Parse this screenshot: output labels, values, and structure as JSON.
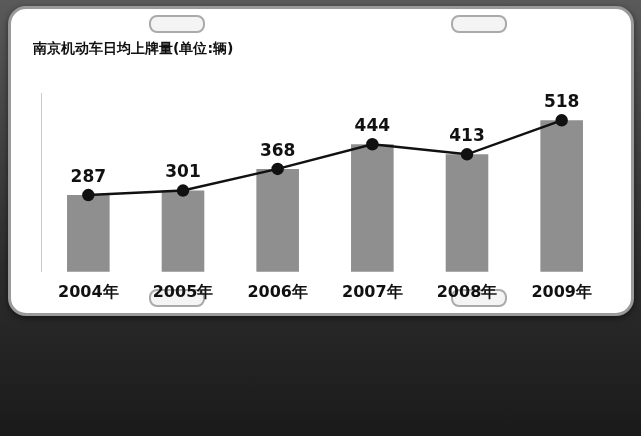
{
  "chart_data": {
    "type": "bar",
    "title": "南京机动车日均上牌量(单位:辆)",
    "categories": [
      "2004年",
      "2005年",
      "2006年",
      "2007年",
      "2008年",
      "2009年"
    ],
    "series": [
      {
        "type": "bar",
        "color": "#8f8f8f",
        "values": [
          287,
          301,
          368,
          444,
          413,
          518
        ]
      },
      {
        "type": "line",
        "color": "#111111",
        "marker": "circle",
        "values": [
          287,
          301,
          368,
          444,
          413,
          518
        ]
      }
    ],
    "ylim": [
      50,
      600
    ],
    "grid": false,
    "data_labels": true,
    "tick_labels": "x"
  }
}
